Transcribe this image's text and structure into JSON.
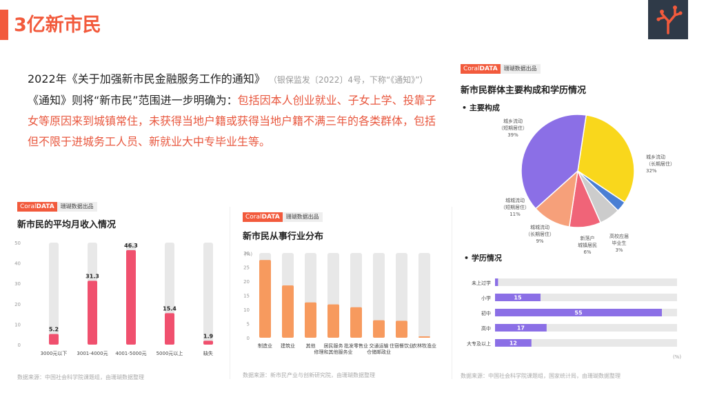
{
  "page": {
    "title": "3亿新市民",
    "intro_main": "2022年《关于加强新市民金融服务工作的通知》",
    "intro_note": "（银保监发〔2022〕4号，下称“《通知》”）",
    "intro_line2_prefix": "《通知》则将“新市民”范围进一步明确为：",
    "intro_line2_red": "包括因本人创业就业、子女上学、投靠子女等原因来到城镇常住，未获得当地户籍或获得当地户籍不满三年的各类群体，包括但不限于进城务工人员、新就业大中专毕业生等。"
  },
  "badge": {
    "brand_plain": "Coral",
    "brand_bold": "DATA",
    "publisher": "珊瑚数据出品"
  },
  "colors": {
    "accent": "#f25a3c",
    "pink": "#f0506e",
    "orange": "#f79a5e",
    "grey": "#e8e8e8",
    "purple": "#8b6fe6"
  },
  "icons": {
    "logo": "coral-branch-icon",
    "watermark": "coral-watermark-icon"
  },
  "chart_data": [
    {
      "type": "bar",
      "title": "新市民的平均月收入情况",
      "categories": [
        "3000元以下",
        "3001-4000元",
        "4001-5000元",
        "5000元以上",
        "缺失"
      ],
      "values": [
        5.2,
        31.3,
        46.3,
        15.4,
        1.9
      ],
      "value_labels": [
        "5.2",
        "31.3",
        "46.3",
        "15.4",
        "1.9"
      ],
      "ylim": [
        0,
        50
      ],
      "yticks": [
        "0",
        "10",
        "20",
        "30",
        "40",
        "50"
      ],
      "source": "数据来源：中国社会科学院课题组，由珊瑚数据整理"
    },
    {
      "type": "bar",
      "title": "新市民从事行业分布",
      "ylabel": "(%)",
      "categories": [
        "制造业",
        "建筑业",
        "其他",
        "居民服务修理和其他服务业",
        "批发零售业",
        "交通运输仓储邮政业",
        "住宿餐饮业",
        "农林牧渔业"
      ],
      "category_lines": [
        [
          "制造业"
        ],
        [
          "建筑业"
        ],
        [
          "其他"
        ],
        [
          "居民服务",
          "修理和其他服务业"
        ],
        [
          "批发零售业"
        ],
        [
          "交通运输",
          "仓储邮政业"
        ],
        [
          "住宿餐饮业"
        ],
        [
          "农林牧渔业"
        ]
      ],
      "values": [
        27.5,
        18.5,
        12.5,
        11.8,
        10.8,
        6.2,
        6.0,
        0.5
      ],
      "ylim": [
        0,
        30
      ],
      "yticks": [
        "0",
        "5",
        "10",
        "15",
        "20",
        "25",
        "30"
      ],
      "source": "数据来源：新市民产业与创新研究院，由珊瑚数据整理"
    },
    {
      "type": "pie",
      "title": "新市民群体主要构成和学历情况",
      "subtitle": "主要构成",
      "slices": [
        {
          "name": "城乡流动（长期居住）",
          "lines": [
            "城乡流动",
            "（长期居住）"
          ],
          "pct": "32%",
          "value": 32,
          "color": "#f9d71c"
        },
        {
          "name": "高校应届毕业生",
          "lines": [
            "高校应届",
            "毕业生"
          ],
          "pct": "3%",
          "value": 3,
          "color": "#4a7fd4"
        },
        {
          "name": "新落户城镇居民",
          "lines": [
            "新落户",
            "城镇居民"
          ],
          "pct": "6%",
          "value": 6,
          "color": "#cccccc"
        },
        {
          "name": "城城流动（长期居住）",
          "lines": [
            "城城流动",
            "（长期居住）"
          ],
          "pct": "9%",
          "value": 9,
          "color": "#f06478"
        },
        {
          "name": "城城流动（短期居住）",
          "lines": [
            "城城流动",
            "（短期居住）"
          ],
          "pct": "11%",
          "value": 11,
          "color": "#f6a07a"
        },
        {
          "name": "城乡流动（短期居住）",
          "lines": [
            "城乡流动",
            "（短期居住）"
          ],
          "pct": "39%",
          "value": 39,
          "color": "#8b6fe6"
        }
      ]
    },
    {
      "type": "bar",
      "orientation": "horizontal",
      "subtitle": "学历情况",
      "categories": [
        "未上过学",
        "小学",
        "初中",
        "高中",
        "大专及以上"
      ],
      "values": [
        1,
        15,
        55,
        17,
        12
      ],
      "value_labels": [
        "",
        "15",
        "55",
        "17",
        "12"
      ],
      "xlim": [
        0,
        60
      ],
      "xticks": [
        "0",
        "10",
        "20",
        "30",
        "40",
        "50",
        "60"
      ],
      "xlabel": "(%)",
      "source": "数据来源：中国社会科学院课题组，国家统计局，由珊瑚数据整理"
    }
  ]
}
